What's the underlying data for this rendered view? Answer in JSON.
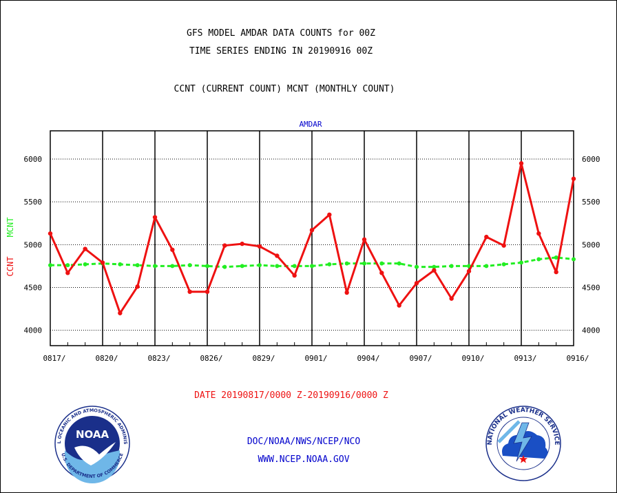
{
  "header": {
    "title_line1": "GFS MODEL AMDAR DATA COUNTS for 00Z",
    "title_line2": "TIME SERIES ENDING IN 20190916 00Z",
    "subtitle": "CCNT (CURRENT COUNT) MCNT (MONTHLY COUNT)"
  },
  "footer": {
    "date_range": "DATE 20190817/0000 Z-20190916/0000 Z",
    "org_line": "DOC/NOAA/NWS/NCEP/NCO",
    "url_line": "WWW.NCEP.NOAA.GOV"
  },
  "logos": {
    "noaa_text": "NOAA",
    "noaa_ring_top": "NATIONAL OCEANIC AND ATMOSPHERIC ADMINISTRATION",
    "noaa_ring_bottom": "U.S. DEPARTMENT OF COMMERCE",
    "nws_ring_top": "NATIONAL WEATHER SERVICE"
  },
  "colors": {
    "ccnt": "#ee1111",
    "mcnt": "#22ee22",
    "title": "#000000",
    "panel_label": "#0000cc",
    "date_range": "#ee1111",
    "org": "#0000cc"
  },
  "chart_data": {
    "type": "line",
    "panel_label": "AMDAR",
    "ylabel_ccnt": "CCNT",
    "ylabel_mcnt": "MCNT",
    "ylim": [
      3820,
      6330
    ],
    "yticks": [
      4000,
      4500,
      5000,
      5500,
      6000
    ],
    "ytick_labels": [
      "4000",
      "4500",
      "5000",
      "5500",
      "6000"
    ],
    "x": [
      "0817",
      "0818",
      "0819",
      "0820",
      "0821",
      "0822",
      "0823",
      "0824",
      "0825",
      "0826",
      "0827",
      "0828",
      "0829",
      "0830",
      "0831",
      "0901",
      "0902",
      "0903",
      "0904",
      "0905",
      "0906",
      "0907",
      "0908",
      "0909",
      "0910",
      "0911",
      "0912",
      "0913",
      "0914",
      "0915",
      "0916"
    ],
    "xtick_labels": [
      "0817/",
      "0820/",
      "0823/",
      "0826/",
      "0829/",
      "0901/",
      "0904/",
      "0907/",
      "0910/",
      "0913/",
      "0916/"
    ],
    "xtick_dates": [
      "0817",
      "0820",
      "0823",
      "0826",
      "0829",
      "0901",
      "0904",
      "0907",
      "0910",
      "0913",
      "0916"
    ],
    "grid": true,
    "series": [
      {
        "name": "CCNT",
        "values": [
          5130,
          4670,
          4950,
          4790,
          4200,
          4510,
          5320,
          4940,
          4450,
          4450,
          4990,
          5010,
          4980,
          4870,
          4640,
          5170,
          5350,
          4440,
          5060,
          4670,
          4290,
          4550,
          4700,
          4370,
          4690,
          5090,
          4990,
          5950,
          5130,
          4680,
          5770
        ]
      },
      {
        "name": "MCNT",
        "values": [
          4760,
          4760,
          4770,
          4780,
          4770,
          4760,
          4750,
          4750,
          4760,
          4750,
          4740,
          4750,
          4760,
          4750,
          4750,
          4750,
          4770,
          4780,
          4780,
          4780,
          4780,
          4740,
          4740,
          4750,
          4750,
          4750,
          4770,
          4790,
          4830,
          4850,
          4830
        ]
      }
    ]
  }
}
